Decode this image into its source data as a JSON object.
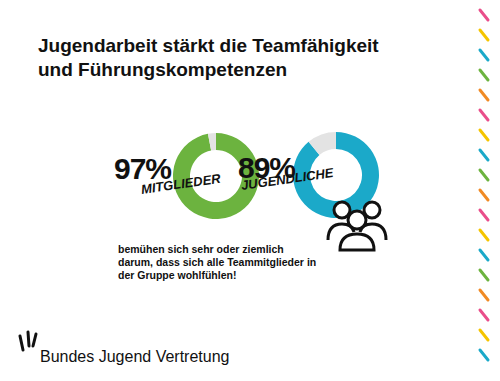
{
  "title": "Jugendarbeit stärkt die Teamfähigkeit und Führungskompetenzen",
  "chart_data": [
    {
      "type": "pie",
      "categories": [
        "Mitglieder"
      ],
      "values": [
        97
      ],
      "value_labels": [
        "97%"
      ],
      "color": "#6cb33f",
      "data_labels": true
    },
    {
      "type": "pie",
      "categories": [
        "Jugendliche"
      ],
      "values": [
        89
      ],
      "value_labels": [
        "89%"
      ],
      "color": "#1ba9c9",
      "data_labels": true
    }
  ],
  "caption": "bemühen sich sehr oder ziemlich darum, dass sich alle Teammitglieder in der Gruppe wohlfühlen!",
  "footer": "Bundes Jugend Vertretung"
}
